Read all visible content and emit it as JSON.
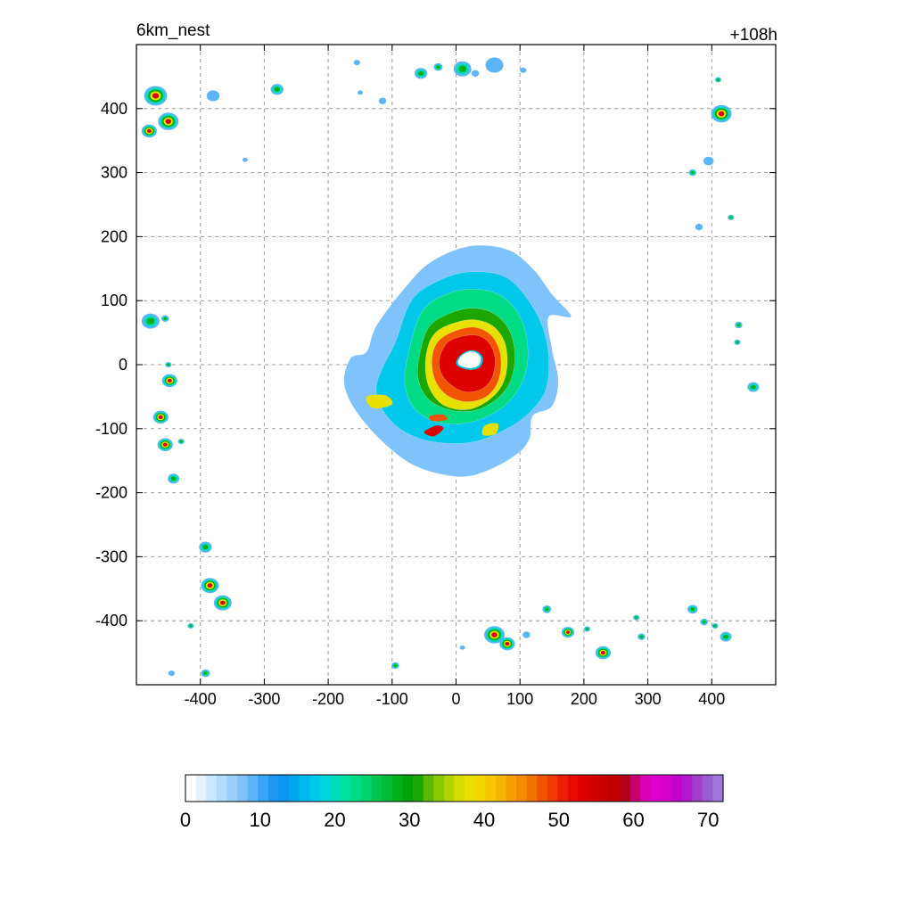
{
  "chart_data": {
    "type": "heatmap",
    "title_left": "6km_nest",
    "title_right": "+108h",
    "xlabel": "",
    "ylabel": "",
    "xlim": [
      -500,
      500
    ],
    "ylim": [
      -500,
      500
    ],
    "x_ticks": [
      -400,
      -300,
      -200,
      -100,
      0,
      100,
      200,
      300,
      400
    ],
    "y_ticks": [
      400,
      300,
      200,
      100,
      0,
      -100,
      -200,
      -300,
      -400
    ],
    "grid": true,
    "colorbar": {
      "min": 0,
      "max": 72,
      "tick_values": [
        0,
        10,
        20,
        30,
        40,
        50,
        60,
        70
      ],
      "tick_labels": [
        "0",
        "10",
        "20",
        "30",
        "40",
        "50",
        "60",
        "70"
      ],
      "colors": [
        "#ffffff",
        "#e6f3ff",
        "#cde8fd",
        "#b4dcfc",
        "#9ad0fb",
        "#7fc3fa",
        "#5db5f8",
        "#38a6f7",
        "#1d99f3",
        "#0a95f2",
        "#00a7f0",
        "#00b8ee",
        "#00c8ea",
        "#00d5d8",
        "#00dcbc",
        "#00e09f",
        "#00db85",
        "#00d26b",
        "#00c64f",
        "#00bb33",
        "#00b01a",
        "#00a20b",
        "#1ba600",
        "#5dba00",
        "#8ac800",
        "#b2d400",
        "#d4dc00",
        "#e8e000",
        "#f3d700",
        "#f6c700",
        "#f7b500",
        "#f6a100",
        "#f48b00",
        "#f27200",
        "#f25500",
        "#f03a00",
        "#ee1e00",
        "#e80a00",
        "#de0000",
        "#d30000",
        "#c80000",
        "#be0000",
        "#b40014",
        "#c8006e",
        "#d800b4",
        "#e000cc",
        "#d400cc",
        "#c400cc",
        "#b416cc",
        "#a43ccc",
        "#9c5cd4",
        "#a078dc"
      ]
    },
    "storm": {
      "center": [
        20,
        10
      ],
      "eye": [
        [
          0,
          2
        ],
        [
          6,
          14
        ],
        [
          20,
          22
        ],
        [
          34,
          20
        ],
        [
          42,
          10
        ],
        [
          38,
          -3
        ],
        [
          24,
          -8
        ],
        [
          8,
          -5
        ]
      ],
      "rings": [
        {
          "level": 8,
          "color": "#7fc3fa",
          "points": [
            [
              -80,
              120
            ],
            [
              -40,
              160
            ],
            [
              20,
              185
            ],
            [
              80,
              180
            ],
            [
              120,
              150
            ],
            [
              150,
              110
            ],
            [
              180,
              75
            ],
            [
              145,
              75
            ],
            [
              150,
              25
            ],
            [
              160,
              -25
            ],
            [
              150,
              -65
            ],
            [
              120,
              -80
            ],
            [
              115,
              -115
            ],
            [
              95,
              -140
            ],
            [
              50,
              -165
            ],
            [
              5,
              -175
            ],
            [
              -60,
              -160
            ],
            [
              -110,
              -125
            ],
            [
              -155,
              -75
            ],
            [
              -175,
              -30
            ],
            [
              -165,
              10
            ],
            [
              -140,
              20
            ],
            [
              -125,
              60
            ]
          ]
        },
        {
          "level": 16,
          "color": "#00c8ea",
          "points": [
            [
              -70,
              100
            ],
            [
              -30,
              130
            ],
            [
              20,
              145
            ],
            [
              75,
              138
            ],
            [
              110,
              105
            ],
            [
              135,
              60
            ],
            [
              145,
              10
            ],
            [
              140,
              -40
            ],
            [
              115,
              -75
            ],
            [
              80,
              -100
            ],
            [
              30,
              -120
            ],
            [
              -25,
              -122
            ],
            [
              -75,
              -108
            ],
            [
              -110,
              -78
            ],
            [
              -125,
              -40
            ],
            [
              -115,
              -5
            ],
            [
              -95,
              35
            ]
          ]
        },
        {
          "level": 22,
          "color": "#00db85",
          "points": [
            [
              -55,
              80
            ],
            [
              -20,
              108
            ],
            [
              25,
              118
            ],
            [
              70,
              108
            ],
            [
              100,
              75
            ],
            [
              112,
              30
            ],
            [
              108,
              -15
            ],
            [
              88,
              -52
            ],
            [
              55,
              -78
            ],
            [
              10,
              -92
            ],
            [
              -35,
              -88
            ],
            [
              -68,
              -65
            ],
            [
              -80,
              -28
            ],
            [
              -75,
              15
            ]
          ]
        },
        {
          "level": 28,
          "color": "#1ba600",
          "points": [
            [
              -40,
              62
            ],
            [
              -5,
              82
            ],
            [
              30,
              88
            ],
            [
              62,
              78
            ],
            [
              85,
              50
            ],
            [
              92,
              10
            ],
            [
              84,
              -28
            ],
            [
              62,
              -55
            ],
            [
              28,
              -72
            ],
            [
              -12,
              -70
            ],
            [
              -45,
              -52
            ],
            [
              -60,
              -18
            ],
            [
              -55,
              25
            ]
          ]
        },
        {
          "level": 35,
          "color": "#e8e000",
          "points": [
            [
              -30,
              52
            ],
            [
              0,
              66
            ],
            [
              30,
              70
            ],
            [
              58,
              60
            ],
            [
              76,
              35
            ],
            [
              80,
              0
            ],
            [
              72,
              -32
            ],
            [
              50,
              -56
            ],
            [
              18,
              -70
            ],
            [
              -18,
              -64
            ],
            [
              -40,
              -40
            ],
            [
              -48,
              -8
            ],
            [
              -44,
              28
            ]
          ]
        },
        {
          "level": 44,
          "color": "#f25500",
          "points": [
            [
              -22,
              42
            ],
            [
              5,
              55
            ],
            [
              32,
              58
            ],
            [
              55,
              46
            ],
            [
              68,
              22
            ],
            [
              70,
              -8
            ],
            [
              62,
              -34
            ],
            [
              44,
              -52
            ],
            [
              15,
              -58
            ],
            [
              -14,
              -48
            ],
            [
              -32,
              -26
            ],
            [
              -38,
              2
            ],
            [
              -34,
              26
            ]
          ]
        },
        {
          "level": 52,
          "color": "#de0000",
          "points": [
            [
              -14,
              34
            ],
            [
              8,
              44
            ],
            [
              32,
              46
            ],
            [
              50,
              36
            ],
            [
              60,
              16
            ],
            [
              60,
              -8
            ],
            [
              52,
              -28
            ],
            [
              36,
              -40
            ],
            [
              12,
              -42
            ],
            [
              -10,
              -30
            ],
            [
              -24,
              -12
            ],
            [
              -26,
              10
            ]
          ]
        }
      ],
      "bands": [
        {
          "level": 48,
          "color": "#de0000",
          "points": [
            [
              -50,
              -105
            ],
            [
              -30,
              -95
            ],
            [
              -20,
              -100
            ],
            [
              -35,
              -112
            ]
          ]
        },
        {
          "level": 45,
          "color": "#f25500",
          "points": [
            [
              -40,
              -80
            ],
            [
              -20,
              -78
            ],
            [
              -15,
              -86
            ],
            [
              -38,
              -88
            ]
          ]
        },
        {
          "level": 35,
          "color": "#e8e000",
          "points": [
            [
              -140,
              -50
            ],
            [
              -110,
              -48
            ],
            [
              -100,
              -62
            ],
            [
              -130,
              -68
            ]
          ]
        },
        {
          "level": 35,
          "color": "#e8e000",
          "points": [
            [
              45,
              -95
            ],
            [
              65,
              -92
            ],
            [
              62,
              -108
            ],
            [
              42,
              -110
            ]
          ]
        }
      ]
    },
    "cells": [
      [
        -470,
        420,
        18,
        2
      ],
      [
        -450,
        380,
        16,
        2
      ],
      [
        -480,
        365,
        12,
        2
      ],
      [
        -380,
        420,
        10,
        0
      ],
      [
        -330,
        320,
        4,
        0
      ],
      [
        -280,
        430,
        10,
        1
      ],
      [
        -155,
        472,
        5,
        0
      ],
      [
        -150,
        425,
        4,
        0
      ],
      [
        -115,
        412,
        6,
        0
      ],
      [
        -55,
        455,
        10,
        1
      ],
      [
        -28,
        465,
        7,
        1
      ],
      [
        10,
        462,
        14,
        1
      ],
      [
        30,
        455,
        6,
        0
      ],
      [
        60,
        468,
        14,
        0
      ],
      [
        105,
        460,
        5,
        0
      ],
      [
        415,
        392,
        16,
        2
      ],
      [
        410,
        445,
        5,
        1
      ],
      [
        395,
        318,
        8,
        0
      ],
      [
        370,
        300,
        6,
        1
      ],
      [
        430,
        230,
        5,
        1
      ],
      [
        380,
        215,
        6,
        0
      ],
      [
        -478,
        68,
        14,
        1
      ],
      [
        -455,
        72,
        6,
        1
      ],
      [
        -450,
        0,
        5,
        1
      ],
      [
        -448,
        -25,
        12,
        2
      ],
      [
        -462,
        -82,
        12,
        2
      ],
      [
        -455,
        -125,
        12,
        2
      ],
      [
        -430,
        -120,
        5,
        1
      ],
      [
        -442,
        -178,
        9,
        1
      ],
      [
        -392,
        -285,
        10,
        1
      ],
      [
        -385,
        -345,
        14,
        2
      ],
      [
        -365,
        -372,
        14,
        2
      ],
      [
        -415,
        -408,
        5,
        1
      ],
      [
        -445,
        -482,
        5,
        0
      ],
      [
        -392,
        -482,
        7,
        1
      ],
      [
        -95,
        -470,
        6,
        1
      ],
      [
        60,
        -422,
        16,
        2
      ],
      [
        80,
        -436,
        12,
        2
      ],
      [
        110,
        -422,
        6,
        0
      ],
      [
        142,
        -382,
        7,
        1
      ],
      [
        175,
        -418,
        10,
        2
      ],
      [
        205,
        -413,
        5,
        1
      ],
      [
        230,
        -450,
        12,
        2
      ],
      [
        282,
        -395,
        5,
        1
      ],
      [
        290,
        -425,
        6,
        1
      ],
      [
        370,
        -382,
        8,
        1
      ],
      [
        388,
        -402,
        6,
        1
      ],
      [
        405,
        -408,
        5,
        1
      ],
      [
        422,
        -425,
        9,
        1
      ],
      [
        442,
        62,
        6,
        1
      ],
      [
        440,
        35,
        5,
        1
      ],
      [
        465,
        -35,
        9,
        1
      ],
      [
        10,
        -442,
        4,
        0
      ]
    ]
  }
}
